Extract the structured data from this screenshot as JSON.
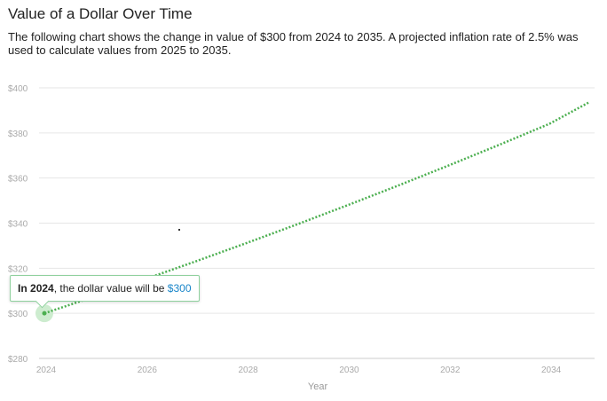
{
  "header": {
    "title": "Value of a Dollar Over Time",
    "description": "The following chart shows the change in value of $300 from 2024 to 2035. A projected inflation rate of 2.5% was used to calculate values from 2025 to 2035."
  },
  "tooltip": {
    "prefix": "In",
    "year": "2024",
    "middle": ", the dollar value will be",
    "value": "$300"
  },
  "colors": {
    "line": "#4caf50",
    "grid": "#e6e6e6",
    "axis_text": "#aaaaaa",
    "highlight": "#cdeccf",
    "tooltip_value": "#1a86c9"
  },
  "chart_data": {
    "type": "line",
    "xlabel": "Year",
    "ylabel": "",
    "xlim": [
      2024,
      2035
    ],
    "ylim": [
      280,
      400
    ],
    "xticks": [
      2024,
      2026,
      2028,
      2030,
      2032,
      2034
    ],
    "xtick_labels": [
      "2024",
      "2026",
      "2028",
      "2030",
      "2032",
      "2034"
    ],
    "yticks": [
      280,
      300,
      320,
      340,
      360,
      380,
      400
    ],
    "ytick_labels": [
      "$280",
      "$300",
      "$320",
      "$340",
      "$360",
      "$380",
      "$400"
    ],
    "grid": true,
    "line_style": "dotted",
    "highlighted_point": {
      "x": 2024,
      "y": 300
    },
    "series": [
      {
        "x": [
          2024,
          2025,
          2026,
          2027,
          2028,
          2029,
          2030,
          2031,
          2032,
          2033,
          2034,
          2035
        ],
        "values": [
          300,
          307.5,
          315.19,
          323.07,
          331.14,
          339.42,
          347.91,
          356.61,
          365.52,
          374.66,
          384.03,
          393.63
        ]
      }
    ]
  }
}
